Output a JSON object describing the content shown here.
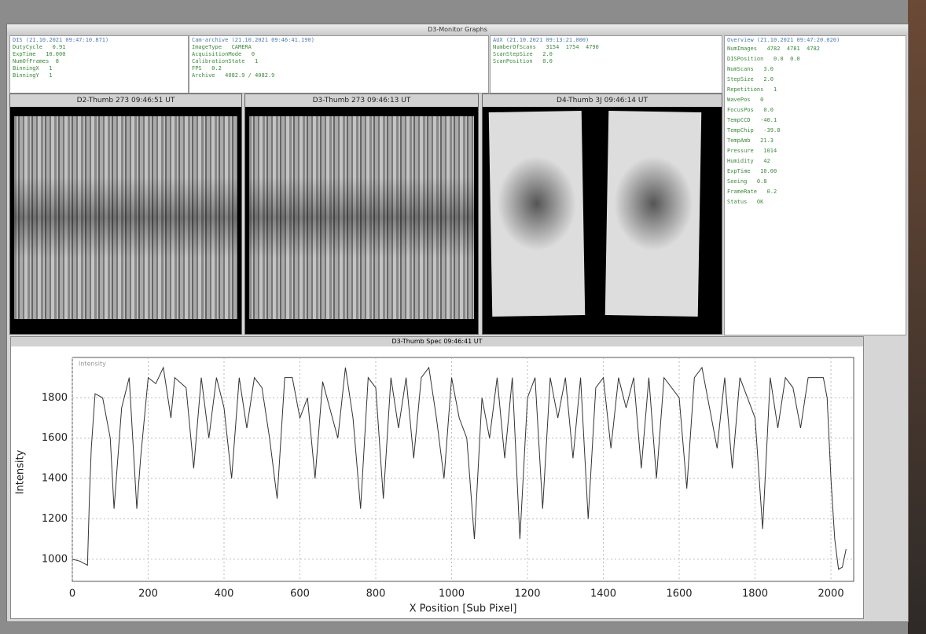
{
  "window": {
    "title": "D3-Monitor Graphs"
  },
  "info_panels": [
    {
      "header": "DIS (21.10.2021 09:47:10.871)",
      "rows": [
        "DutyCycle   0.91",
        "ExpTime   10.000",
        "NumOfFrames  8",
        "BinningX   1",
        "BinningY   1"
      ]
    },
    {
      "header": "Cam-archive (21.10.2021 09:46:41.190)",
      "rows": [
        "ImageType   CAMERA",
        "AcquisitionMode   0",
        "CalibrationState   1",
        "FPS   0.2",
        "Archive   4082.9 / 4082.9"
      ]
    },
    {
      "header": "AUX (21.10.2021 09:13:21.000)",
      "rows": [
        "NumberOfScans   3154  1754  4790",
        "ScanStepSize   2.0",
        "ScanPosition   0.0"
      ]
    },
    {
      "header": "Overview (21.10.2021 09:47:20.020)",
      "rows": [
        "NumImages   4782  4781  4782",
        "DISPosition   0.0  0.0",
        "NumScans   3.0",
        "StepSize   2.0",
        "Repetitions   1",
        "WavePos   0",
        "FocusPos   0.0",
        "TempCCD   -40.1",
        "TempChip   -39.8",
        "TempAmb   21.3",
        "Pressure   1014",
        "Humidity   42",
        "ExpTime   10.00",
        "Seeing   0.8",
        "FrameRate   0.2",
        "Status   OK"
      ]
    }
  ],
  "thumbnails": [
    {
      "title": "D2-Thumb 273 09:46:51 UT"
    },
    {
      "title": "D3-Thumb 273 09:46:13 UT"
    },
    {
      "title": "D4-Thumb 3J 09:46:14 UT"
    }
  ],
  "spectrum": {
    "title": "D3-Thumb Spec 09:46:41 UT",
    "legend": "Intensity",
    "xlabel": "X Position [Sub Pixel]",
    "ylabel": "Intensity",
    "xlim": [
      0,
      2060
    ],
    "ylim": [
      890,
      2000
    ],
    "xticks": [
      0,
      200,
      400,
      600,
      800,
      1000,
      1200,
      1400,
      1600,
      1800,
      2000
    ],
    "yticks": [
      1000,
      1200,
      1400,
      1600,
      1800
    ],
    "x": [
      0,
      20,
      40,
      45,
      50,
      60,
      80,
      100,
      110,
      130,
      150,
      170,
      180,
      200,
      220,
      240,
      260,
      270,
      300,
      320,
      340,
      360,
      380,
      400,
      420,
      440,
      460,
      480,
      500,
      520,
      540,
      560,
      580,
      600,
      620,
      640,
      660,
      700,
      720,
      740,
      760,
      780,
      800,
      820,
      840,
      860,
      880,
      900,
      920,
      940,
      960,
      980,
      1000,
      1020,
      1040,
      1060,
      1080,
      1100,
      1120,
      1140,
      1160,
      1180,
      1200,
      1220,
      1240,
      1260,
      1280,
      1300,
      1320,
      1340,
      1360,
      1380,
      1400,
      1420,
      1440,
      1460,
      1480,
      1500,
      1520,
      1540,
      1560,
      1600,
      1620,
      1640,
      1660,
      1700,
      1720,
      1740,
      1760,
      1800,
      1820,
      1840,
      1860,
      1880,
      1900,
      1920,
      1940,
      1980,
      1990,
      2000,
      2010,
      2020,
      2030,
      2040
    ],
    "values": [
      1000,
      990,
      970,
      1300,
      1550,
      1820,
      1800,
      1600,
      1250,
      1750,
      1900,
      1250,
      1500,
      1900,
      1870,
      1950,
      1700,
      1900,
      1850,
      1450,
      1900,
      1600,
      1900,
      1750,
      1400,
      1900,
      1650,
      1900,
      1850,
      1600,
      1300,
      1900,
      1900,
      1700,
      1800,
      1400,
      1880,
      1600,
      1950,
      1700,
      1250,
      1900,
      1850,
      1300,
      1900,
      1650,
      1900,
      1500,
      1900,
      1950,
      1700,
      1400,
      1900,
      1700,
      1600,
      1100,
      1800,
      1600,
      1900,
      1500,
      1900,
      1100,
      1800,
      1900,
      1250,
      1900,
      1700,
      1900,
      1500,
      1900,
      1200,
      1850,
      1900,
      1550,
      1900,
      1750,
      1900,
      1450,
      1900,
      1400,
      1900,
      1800,
      1350,
      1900,
      1950,
      1550,
      1900,
      1450,
      1900,
      1700,
      1150,
      1900,
      1650,
      1900,
      1850,
      1650,
      1900,
      1900,
      1800,
      1400,
      1100,
      950,
      960,
      1050
    ],
    "color": "#333333",
    "grid": true
  }
}
